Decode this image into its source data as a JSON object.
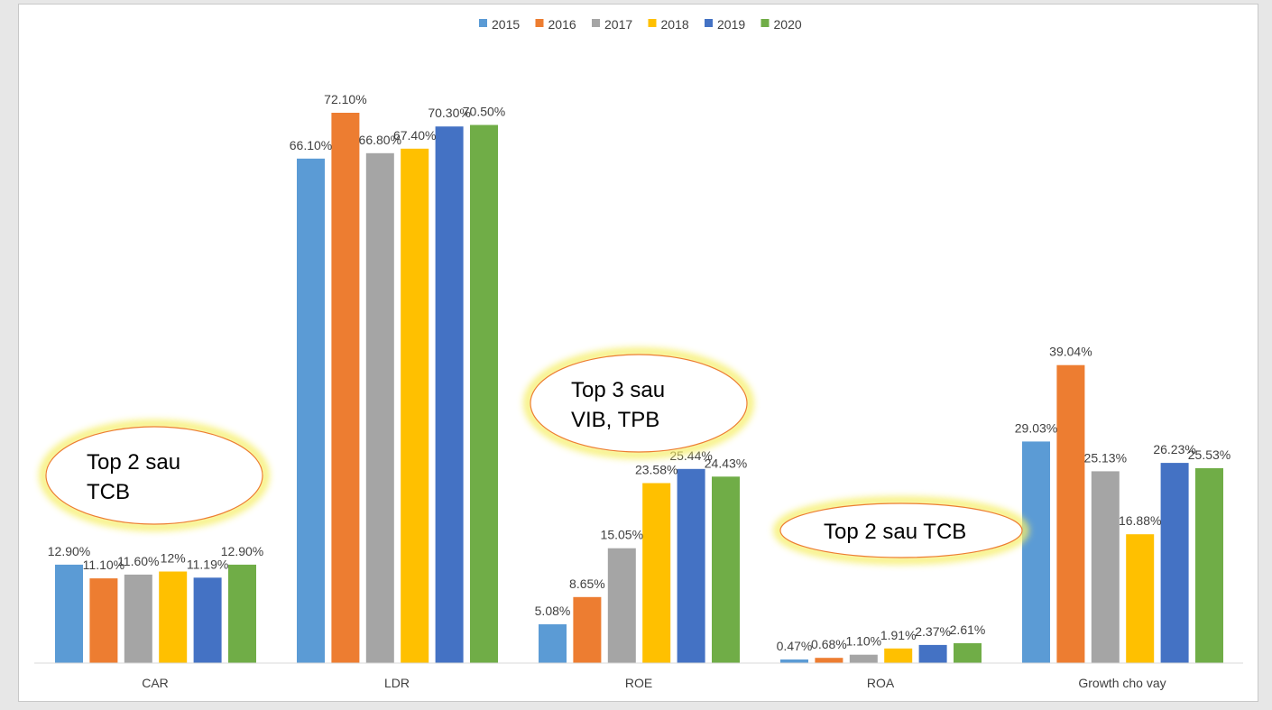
{
  "chart_data": {
    "type": "bar",
    "categories": [
      "CAR",
      "LDR",
      "ROE",
      "ROA",
      "Growth cho vay"
    ],
    "series": [
      {
        "name": "2015",
        "color": "#5b9bd5",
        "values": [
          12.9,
          66.1,
          5.08,
          0.47,
          29.03
        ],
        "labels": [
          "12.90%",
          "66.10%",
          "5.08%",
          "0.47%",
          "29.03%"
        ]
      },
      {
        "name": "2016",
        "color": "#ed7d31",
        "values": [
          11.1,
          72.1,
          8.65,
          0.68,
          39.04
        ],
        "labels": [
          "11.10%",
          "72.10%",
          "8.65%",
          "0.68%",
          "39.04%"
        ]
      },
      {
        "name": "2017",
        "color": "#a5a5a5",
        "values": [
          11.6,
          66.8,
          15.05,
          1.1,
          25.13
        ],
        "labels": [
          "11.60%",
          "66.80%",
          "15.05%",
          "1.10%",
          "25.13%"
        ]
      },
      {
        "name": "2018",
        "color": "#ffc000",
        "values": [
          12.0,
          67.4,
          23.58,
          1.91,
          16.88
        ],
        "labels": [
          "12%",
          "67.40%",
          "23.58%",
          "1.91%",
          "16.88%"
        ]
      },
      {
        "name": "2019",
        "color": "#4472c4",
        "values": [
          11.19,
          70.3,
          25.44,
          2.37,
          26.23
        ],
        "labels": [
          "11.19%",
          "70.30%",
          "25.44%",
          "2.37%",
          "26.23%"
        ]
      },
      {
        "name": "2020",
        "color": "#70ad47",
        "values": [
          12.9,
          70.5,
          24.43,
          2.61,
          25.53
        ],
        "labels": [
          "12.90%",
          "70.50%",
          "24.43%",
          "2.61%",
          "25.53%"
        ]
      }
    ],
    "ylim": [
      0,
      72.1
    ],
    "legend_position": "top",
    "grid": false,
    "annotations": [
      {
        "lines": [
          "Top 2 sau",
          "TCB"
        ],
        "category": "CAR"
      },
      {
        "lines": [
          "Top 3 sau",
          "VIB, TPB"
        ],
        "category": "ROE"
      },
      {
        "lines": [
          "Top 2 sau TCB"
        ],
        "category": "ROA"
      }
    ]
  }
}
